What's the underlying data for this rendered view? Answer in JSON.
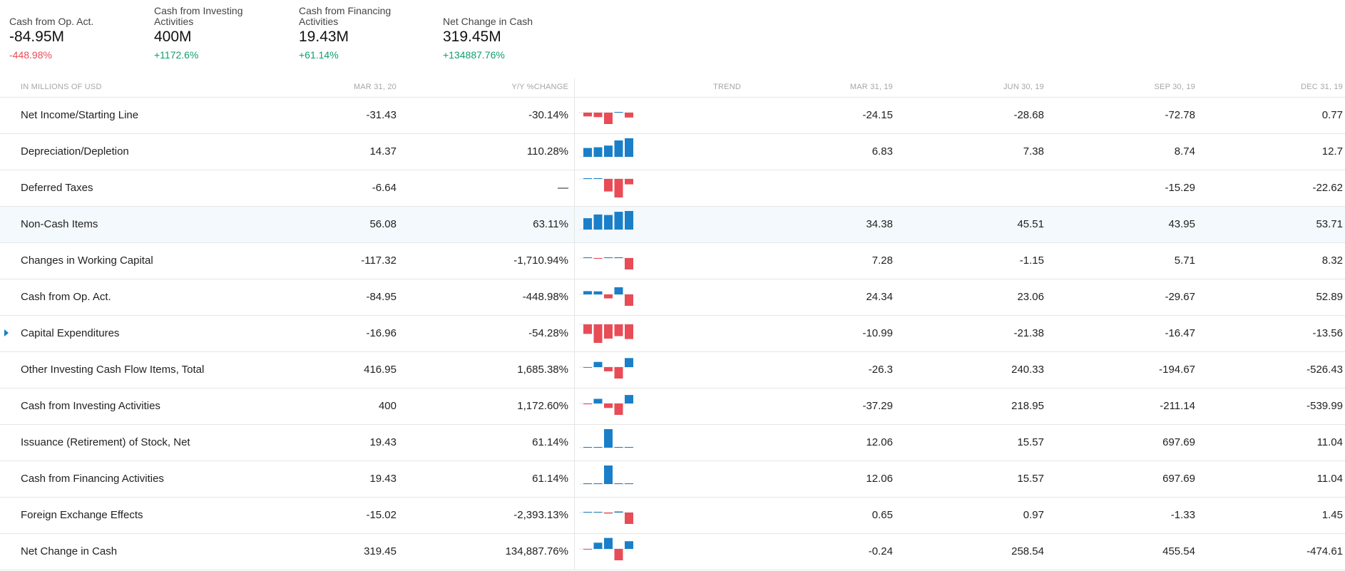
{
  "colors": {
    "positive": "#0f9d72",
    "negative": "#e84c57",
    "bar_positive": "#1a7fc8",
    "bar_negative": "#e84c57"
  },
  "summary": [
    {
      "label": "Cash from Op. Act.",
      "value": "-84.95M",
      "change": "-448.98%",
      "direction": "neg"
    },
    {
      "label": "Cash from Investing Activities",
      "value": "400M",
      "change": "+1172.6%",
      "direction": "pos"
    },
    {
      "label": "Cash from Financing Activities",
      "value": "19.43M",
      "change": "+61.14%",
      "direction": "pos"
    },
    {
      "label": "Net Change in Cash",
      "value": "319.45M",
      "change": "+134887.76%",
      "direction": "pos"
    }
  ],
  "table": {
    "headers": {
      "label": "IN MILLIONS OF USD",
      "mar20": "MAR 31, 20",
      "yoy": "Y/Y %CHANGE",
      "trend": "TREND",
      "mar19": "MAR 31, 19",
      "jun19": "JUN 30, 19",
      "sep19": "SEP 30, 19",
      "dec19": "DEC 31, 19"
    },
    "rows": [
      {
        "label": "Net Income/Starting Line",
        "mar20": "-31.43",
        "yoy": "-30.14%",
        "yoy_dir": "neg",
        "mar19": "-24.15",
        "jun19": "-28.68",
        "sep19": "-72.78",
        "dec19": "0.77",
        "trend": [
          -24.15,
          -28.68,
          -72.78,
          0.77,
          -31.43
        ]
      },
      {
        "label": "Depreciation/Depletion",
        "mar20": "14.37",
        "yoy": "110.28%",
        "yoy_dir": "pos",
        "mar19": "6.83",
        "jun19": "7.38",
        "sep19": "8.74",
        "dec19": "12.7",
        "trend": [
          6.83,
          7.38,
          8.74,
          12.7,
          14.37
        ]
      },
      {
        "label": "Deferred Taxes",
        "mar20": "-6.64",
        "yoy": "—",
        "yoy_dir": "neg",
        "mar19": "",
        "jun19": "",
        "sep19": "-15.29",
        "dec19": "-22.62",
        "trend": [
          0,
          0,
          -15.29,
          -22.62,
          -6.64
        ]
      },
      {
        "label": "Non-Cash Items",
        "mar20": "56.08",
        "yoy": "63.11%",
        "yoy_dir": "pos",
        "mar19": "34.38",
        "jun19": "45.51",
        "sep19": "43.95",
        "dec19": "53.71",
        "trend": [
          34.38,
          45.51,
          43.95,
          53.71,
          56.08
        ],
        "highlight": true
      },
      {
        "label": "Changes in Working Capital",
        "mar20": "-117.32",
        "yoy": "-1,710.94%",
        "yoy_dir": "neg",
        "mar19": "7.28",
        "jun19": "-1.15",
        "sep19": "5.71",
        "dec19": "8.32",
        "trend": [
          7.28,
          -1.15,
          5.71,
          8.32,
          -117.32
        ]
      },
      {
        "label": "Cash from Op. Act.",
        "mar20": "-84.95",
        "yoy": "-448.98%",
        "yoy_dir": "neg",
        "mar19": "24.34",
        "jun19": "23.06",
        "sep19": "-29.67",
        "dec19": "52.89",
        "trend": [
          24.34,
          23.06,
          -29.67,
          52.89,
          -84.95
        ]
      },
      {
        "label": "Capital Expenditures",
        "mar20": "-16.96",
        "yoy": "-54.28%",
        "yoy_dir": "neg",
        "mar19": "-10.99",
        "jun19": "-21.38",
        "sep19": "-16.47",
        "dec19": "-13.56",
        "trend": [
          -10.99,
          -21.38,
          -16.47,
          -13.56,
          -16.96
        ],
        "expandable": true
      },
      {
        "label": "Other Investing Cash Flow Items, Total",
        "mar20": "416.95",
        "yoy": "1,685.38%",
        "yoy_dir": "pos",
        "mar19": "-26.3",
        "jun19": "240.33",
        "sep19": "-194.67",
        "dec19": "-526.43",
        "trend": [
          -26.3,
          240.33,
          -194.67,
          -526.43,
          416.95
        ]
      },
      {
        "label": "Cash from Investing Activities",
        "mar20": "400",
        "yoy": "1,172.60%",
        "yoy_dir": "pos",
        "mar19": "-37.29",
        "jun19": "218.95",
        "sep19": "-211.14",
        "dec19": "-539.99",
        "trend": [
          -37.29,
          218.95,
          -211.14,
          -539.99,
          400
        ]
      },
      {
        "label": "Issuance (Retirement) of Stock, Net",
        "mar20": "19.43",
        "yoy": "61.14%",
        "yoy_dir": "pos",
        "mar19": "12.06",
        "jun19": "15.57",
        "sep19": "697.69",
        "dec19": "11.04",
        "trend": [
          12.06,
          15.57,
          697.69,
          11.04,
          19.43
        ]
      },
      {
        "label": "Cash from Financing Activities",
        "mar20": "19.43",
        "yoy": "61.14%",
        "yoy_dir": "pos",
        "mar19": "12.06",
        "jun19": "15.57",
        "sep19": "697.69",
        "dec19": "11.04",
        "trend": [
          12.06,
          15.57,
          697.69,
          11.04,
          19.43
        ]
      },
      {
        "label": "Foreign Exchange Effects",
        "mar20": "-15.02",
        "yoy": "-2,393.13%",
        "yoy_dir": "neg",
        "mar19": "0.65",
        "jun19": "0.97",
        "sep19": "-1.33",
        "dec19": "1.45",
        "trend": [
          0.65,
          0.97,
          -1.33,
          1.45,
          -15.02
        ]
      },
      {
        "label": "Net Change in Cash",
        "mar20": "319.45",
        "yoy": "134,887.76%",
        "yoy_dir": "pos",
        "mar19": "-0.24",
        "jun19": "258.54",
        "sep19": "455.54",
        "dec19": "-474.61",
        "trend": [
          -0.24,
          258.54,
          455.54,
          -474.61,
          319.45
        ]
      }
    ]
  }
}
